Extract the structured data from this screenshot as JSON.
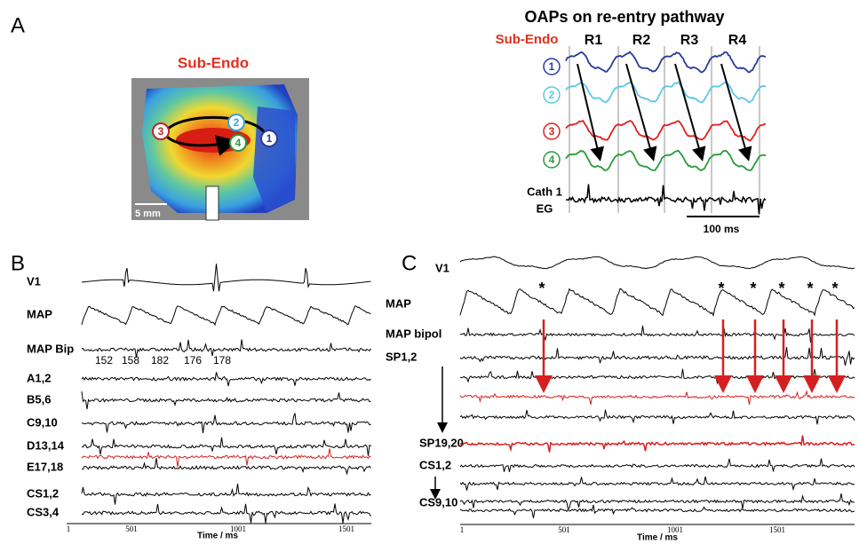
{
  "panel_a": {
    "label": "A",
    "map_title": "Sub-Endo",
    "scale_bar": "5 mm",
    "map_sites": [
      "3",
      "2",
      "4",
      "1"
    ],
    "oap_title": "OAPs on re-entry pathway",
    "oap_subtitle": "Sub-Endo",
    "rotations": [
      "R1",
      "R2",
      "R3",
      "R4"
    ],
    "trace_sites": [
      "1",
      "2",
      "3",
      "4"
    ],
    "eg_label": [
      "Cath 1",
      "EG"
    ],
    "time_bar": "100 ms"
  },
  "panel_b": {
    "label": "B",
    "channels": [
      "V1",
      "MAP",
      "MAP Bip",
      "A1,2",
      "B5,6",
      "C9,10",
      "D13,14",
      "E17,18",
      "CS1,2",
      "CS3,4"
    ],
    "intervals": [
      152,
      158,
      182,
      176,
      178
    ],
    "x_ticks": [
      1,
      501,
      1001,
      1501
    ],
    "x_label": "Time / ms"
  },
  "panel_c": {
    "label": "C",
    "channels": [
      "V1",
      "MAP",
      "MAP bipol",
      "SP1,2",
      "SP19,20",
      "CS1,2",
      "CS9,10"
    ],
    "markers": [
      "*",
      "*",
      "*",
      "*",
      "*",
      "*"
    ],
    "x_ticks": [
      1,
      501,
      1001,
      1501
    ],
    "x_label": "Time / ms"
  }
}
